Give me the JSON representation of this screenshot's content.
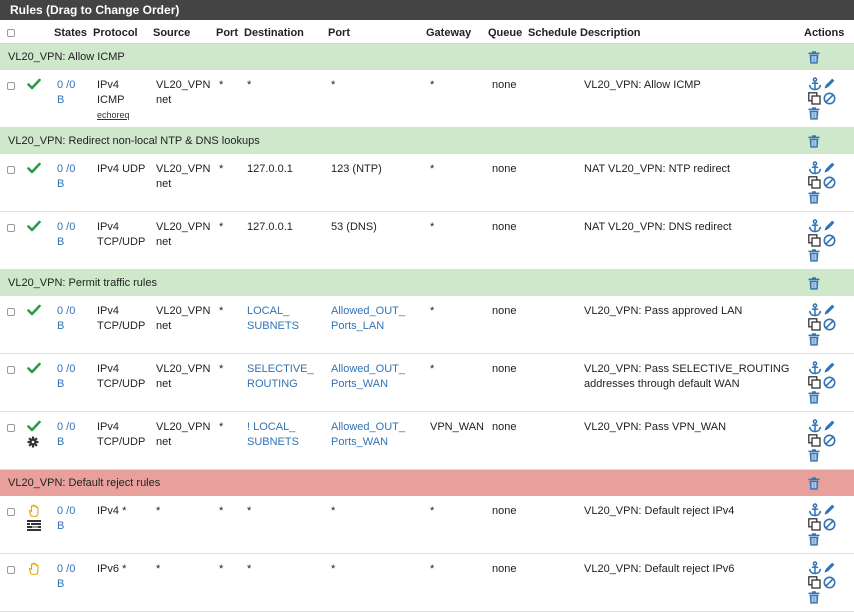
{
  "panel": {
    "title": "Rules (Drag to Change Order)"
  },
  "headers": {
    "states": "States",
    "protocol": "Protocol",
    "source": "Source",
    "port": "Port",
    "destination": "Destination",
    "dport": "Port",
    "gateway": "Gateway",
    "queue": "Queue",
    "schedule": "Schedule",
    "description": "Description",
    "actions": "Actions"
  },
  "sections": [
    {
      "label": "VL20_VPN: Allow ICMP",
      "color": "green",
      "rules": [
        {
          "status": "pass",
          "states": "0 /0",
          "states_unit": "B",
          "proto1": "IPv4",
          "proto2": "ICMP",
          "proto3": "echoreq",
          "source1": "VL20_VPN",
          "source2": "net",
          "sport": "*",
          "dest1": "*",
          "dest2": "",
          "dest_link": false,
          "dport1": "*",
          "dport2": "",
          "dport_link": false,
          "gateway": "*",
          "queue": "none",
          "schedule": "",
          "desc1": "VL20_VPN: Allow ICMP",
          "desc2": ""
        }
      ]
    },
    {
      "label": "VL20_VPN: Redirect non-local NTP & DNS lookups",
      "color": "green",
      "rules": [
        {
          "status": "pass",
          "states": "0 /0",
          "states_unit": "B",
          "proto1": "IPv4 UDP",
          "proto2": "",
          "proto3": "",
          "source1": "VL20_VPN",
          "source2": "net",
          "sport": "*",
          "dest1": "127.0.0.1",
          "dest2": "",
          "dest_link": false,
          "dport1": "123 (NTP)",
          "dport2": "",
          "dport_link": false,
          "gateway": "*",
          "queue": "none",
          "schedule": "",
          "desc1": "NAT VL20_VPN: NTP redirect",
          "desc2": ""
        },
        {
          "status": "pass",
          "states": "0 /0",
          "states_unit": "B",
          "proto1": "IPv4",
          "proto2": "TCP/UDP",
          "proto3": "",
          "source1": "VL20_VPN",
          "source2": "net",
          "sport": "*",
          "dest1": "127.0.0.1",
          "dest2": "",
          "dest_link": false,
          "dport1": "53 (DNS)",
          "dport2": "",
          "dport_link": false,
          "gateway": "*",
          "queue": "none",
          "schedule": "",
          "desc1": "NAT VL20_VPN: DNS redirect",
          "desc2": ""
        }
      ]
    },
    {
      "label": "VL20_VPN: Permit traffic rules",
      "color": "green",
      "rules": [
        {
          "status": "pass",
          "states": "0 /0",
          "states_unit": "B",
          "proto1": "IPv4",
          "proto2": "TCP/UDP",
          "proto3": "",
          "source1": "VL20_VPN",
          "source2": "net",
          "sport": "*",
          "dest1": "LOCAL_",
          "dest2": "SUBNETS",
          "dest_link": true,
          "dport1": "Allowed_OUT_",
          "dport2": "Ports_LAN",
          "dport_link": true,
          "gateway": "*",
          "queue": "none",
          "schedule": "",
          "desc1": "VL20_VPN: Pass approved LAN",
          "desc2": ""
        },
        {
          "status": "pass",
          "states": "0 /0",
          "states_unit": "B",
          "proto1": "IPv4",
          "proto2": "TCP/UDP",
          "proto3": "",
          "source1": "VL20_VPN",
          "source2": "net",
          "sport": "*",
          "dest1": "SELECTIVE_",
          "dest2": "ROUTING",
          "dest_link": true,
          "dport1": "Allowed_OUT_",
          "dport2": "Ports_WAN",
          "dport_link": true,
          "gateway": "*",
          "queue": "none",
          "schedule": "",
          "desc1": "VL20_VPN: Pass SELECTIVE_ROUTING",
          "desc2": "addresses through default WAN"
        },
        {
          "status": "pass-gear",
          "states": "0 /0",
          "states_unit": "B",
          "proto1": "IPv4",
          "proto2": "TCP/UDP",
          "proto3": "",
          "source1": "VL20_VPN",
          "source2": "net",
          "sport": "*",
          "dest1": "! LOCAL_",
          "dest2": "SUBNETS",
          "dest_link": true,
          "dport1": "Allowed_OUT_",
          "dport2": "Ports_WAN",
          "dport_link": true,
          "gateway": "VPN_WAN",
          "queue": "none",
          "schedule": "",
          "desc1": "VL20_VPN: Pass VPN_WAN",
          "desc2": ""
        }
      ]
    },
    {
      "label": "VL20_VPN: Default reject rules",
      "color": "red",
      "rules": [
        {
          "status": "reject-log",
          "states": "0 /0",
          "states_unit": "B",
          "proto1": "IPv4 *",
          "proto2": "",
          "proto3": "",
          "source1": "*",
          "source2": "",
          "sport": "*",
          "dest1": "*",
          "dest2": "",
          "dest_link": false,
          "dport1": "*",
          "dport2": "",
          "dport_link": false,
          "gateway": "*",
          "queue": "none",
          "schedule": "",
          "desc1": "VL20_VPN: Default reject IPv4",
          "desc2": ""
        },
        {
          "status": "reject",
          "states": "0 /0",
          "states_unit": "B",
          "proto1": "IPv6 *",
          "proto2": "",
          "proto3": "",
          "source1": "*",
          "source2": "",
          "sport": "*",
          "dest1": "*",
          "dest2": "",
          "dest_link": false,
          "dport1": "*",
          "dport2": "",
          "dport_link": false,
          "gateway": "*",
          "queue": "none",
          "schedule": "",
          "desc1": "VL20_VPN: Default reject IPv6",
          "desc2": ""
        }
      ]
    }
  ],
  "icons": {
    "pass": "check-icon",
    "gear": "gear-icon",
    "reject": "hand-icon",
    "log": "log-icon",
    "anchor": "anchor-icon",
    "edit": "pencil-icon",
    "copy": "copy-icon",
    "disable": "ban-icon",
    "delete": "trash-icon"
  },
  "colors": {
    "header_bar": "#444444",
    "separator_green": "#cfe8cc",
    "separator_red": "#e8a09d",
    "link": "#3173b5",
    "pass": "#2e9a4a",
    "reject": "#e0a800"
  }
}
